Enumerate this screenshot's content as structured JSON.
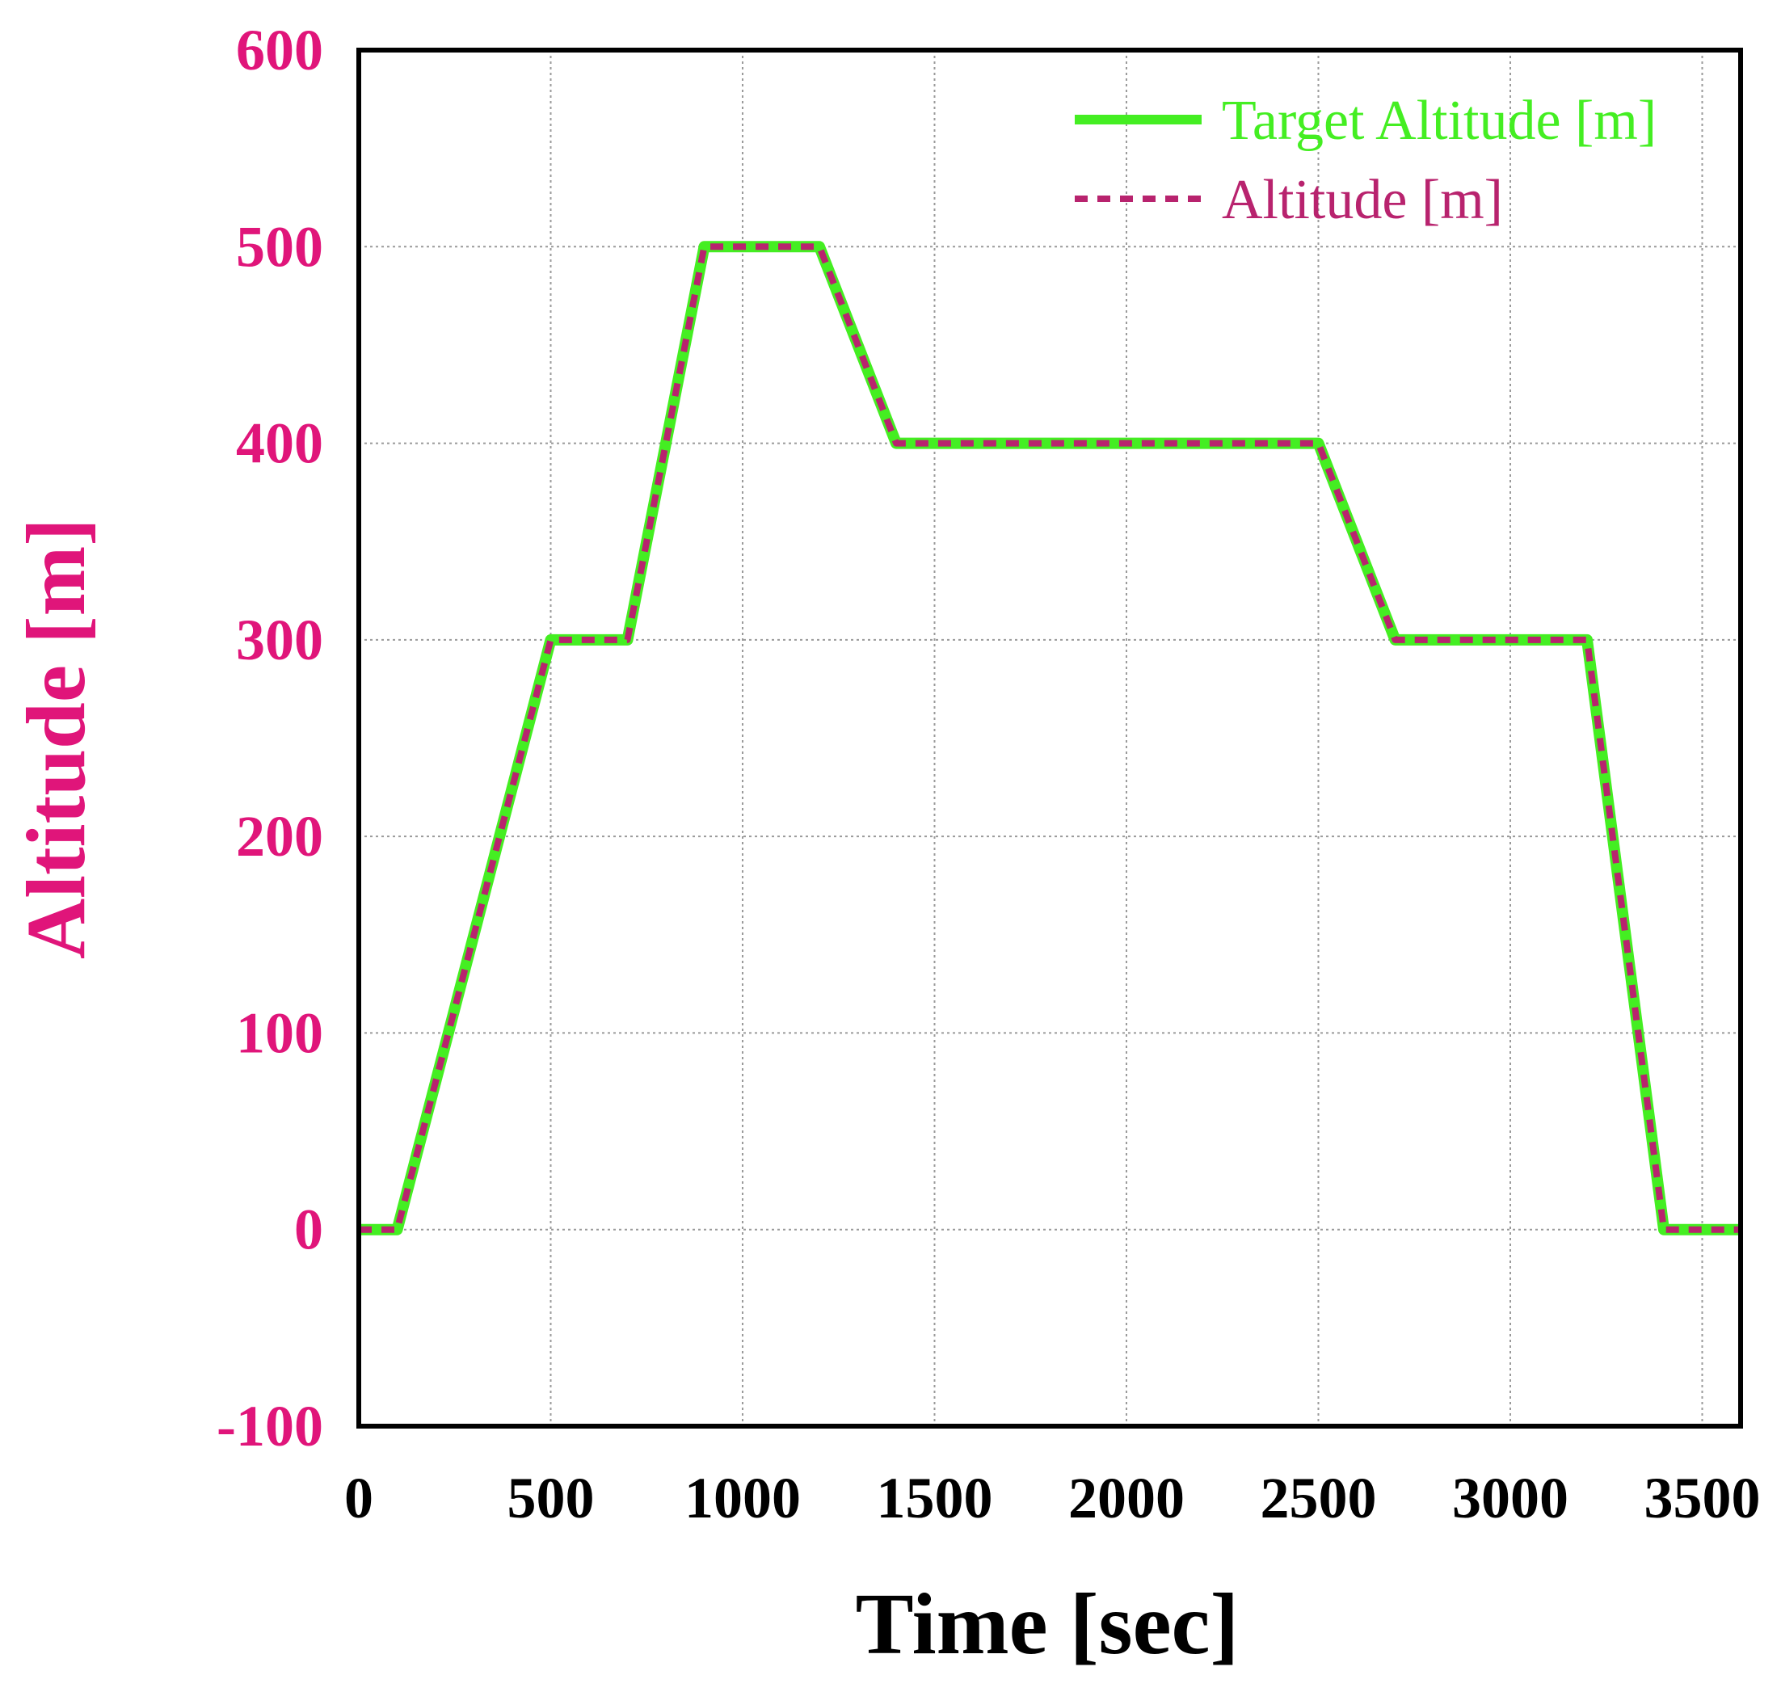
{
  "chart_data": {
    "type": "line",
    "xlabel": "Time [sec]",
    "ylabel": "Altitude [m]",
    "xlim": [
      0,
      3600
    ],
    "ylim": [
      -100,
      600
    ],
    "xticks": [
      "0",
      "500",
      "1000",
      "1500",
      "2000",
      "2500",
      "3000",
      "3500"
    ],
    "yticks": [
      "-100",
      "0",
      "100",
      "200",
      "300",
      "400",
      "500",
      "600"
    ],
    "grid": true,
    "legend_position": "top-right",
    "series": [
      {
        "name": "Target Altitude [m]",
        "color": "#44ee22",
        "style": "solid",
        "x": [
          0,
          100,
          500,
          700,
          900,
          1200,
          1400,
          2500,
          2700,
          3200,
          3400,
          3600
        ],
        "y": [
          0,
          0,
          300,
          300,
          500,
          500,
          400,
          400,
          300,
          300,
          0,
          0
        ]
      },
      {
        "name": "Altitude [m]",
        "color": "#b8236e",
        "style": "dashed",
        "x": [
          0,
          100,
          500,
          700,
          900,
          1200,
          1400,
          2500,
          2700,
          3200,
          3400,
          3600
        ],
        "y": [
          0,
          0,
          300,
          300,
          500,
          500,
          400,
          400,
          300,
          300,
          0,
          0
        ]
      }
    ],
    "colors": {
      "ytick": "#e0157a",
      "ylabel": "#e0157a",
      "xtick": "#000000",
      "xlabel": "#000000"
    }
  }
}
